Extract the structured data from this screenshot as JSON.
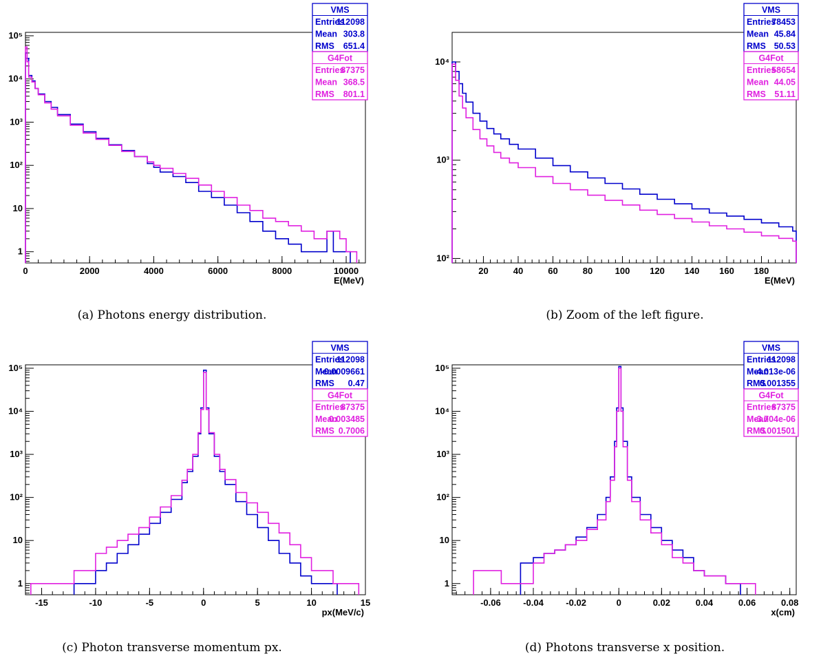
{
  "chart_data": [
    {
      "type": "line",
      "caption": "(a) Photons energy distribution.",
      "xlabel": "E(MeV)",
      "xlim": [
        0,
        10600
      ],
      "ylim": [
        0.55,
        120000
      ],
      "yscale": "log",
      "xticks": [
        0,
        2000,
        4000,
        6000,
        8000,
        10000
      ],
      "yticks": [
        1,
        10,
        100,
        1000,
        10000,
        100000
      ],
      "yticklabels": [
        "1",
        "10",
        "10²",
        "10³",
        "10⁴",
        "10⁵"
      ],
      "stats": [
        {
          "name": "VMS",
          "color": "#0000cc",
          "rows": [
            [
              "Entries",
              "112098"
            ],
            [
              "Mean",
              "303.8"
            ],
            [
              "RMS",
              "651.4"
            ]
          ]
        },
        {
          "name": "G4Fot",
          "color": "#e020e0",
          "rows": [
            [
              "Entries",
              "87375"
            ],
            [
              "Mean",
              "368.5"
            ],
            [
              "RMS",
              "801.1"
            ]
          ]
        }
      ],
      "series": [
        {
          "name": "VMS",
          "color": "#0000cc",
          "x": [
            0,
            50,
            100,
            200,
            300,
            400,
            600,
            800,
            1000,
            1400,
            1800,
            2200,
            2600,
            3000,
            3400,
            3800,
            4000,
            4200,
            4600,
            5000,
            5400,
            5800,
            6200,
            6600,
            7000,
            7400,
            7800,
            8200,
            8600,
            9000,
            9400,
            9600,
            9800,
            10000
          ],
          "y": [
            40000,
            30000,
            12000,
            9000,
            6000,
            4500,
            3000,
            2200,
            1500,
            900,
            600,
            420,
            300,
            220,
            160,
            110,
            90,
            70,
            55,
            40,
            25,
            18,
            12,
            8,
            5,
            3,
            2,
            1.5,
            1,
            1,
            3,
            1,
            1,
            1
          ]
        },
        {
          "name": "G4Fot",
          "color": "#e020e0",
          "x": [
            0,
            50,
            100,
            200,
            300,
            400,
            600,
            800,
            1000,
            1400,
            1800,
            2200,
            2600,
            3000,
            3400,
            3800,
            4000,
            4200,
            4600,
            5000,
            5400,
            5800,
            6200,
            6600,
            7000,
            7400,
            7800,
            8200,
            8600,
            9000,
            9400,
            9800,
            10000,
            10200
          ],
          "y": [
            55000,
            25000,
            11000,
            8500,
            6000,
            4300,
            2800,
            2000,
            1400,
            850,
            560,
            400,
            290,
            210,
            160,
            120,
            100,
            85,
            65,
            50,
            35,
            25,
            18,
            12,
            9,
            6,
            5,
            4,
            3,
            2,
            3,
            2,
            1,
            1
          ]
        }
      ]
    },
    {
      "type": "line",
      "caption": "(b) Zoom of the left figure.",
      "xlabel": "E(MeV)",
      "xlim": [
        2,
        200
      ],
      "ylim": [
        90,
        20000
      ],
      "yscale": "log",
      "xticks": [
        20,
        40,
        60,
        80,
        100,
        120,
        140,
        160,
        180
      ],
      "yticks": [
        100,
        1000,
        10000
      ],
      "yticklabels": [
        "10²",
        "10³",
        "10⁴"
      ],
      "stats": [
        {
          "name": "VMS",
          "color": "#0000cc",
          "rows": [
            [
              "Entries",
              "78453"
            ],
            [
              "Mean",
              "45.84"
            ],
            [
              "RMS",
              "50.53"
            ]
          ]
        },
        {
          "name": "G4Fot",
          "color": "#e020e0",
          "rows": [
            [
              "Entries",
              "58654"
            ],
            [
              "Mean",
              "44.05"
            ],
            [
              "RMS",
              "51.11"
            ]
          ]
        }
      ],
      "series": [
        {
          "name": "VMS",
          "color": "#0000cc",
          "x": [
            2,
            4,
            6,
            8,
            10,
            14,
            18,
            22,
            26,
            30,
            35,
            40,
            50,
            60,
            70,
            80,
            90,
            100,
            110,
            120,
            130,
            140,
            150,
            160,
            170,
            180,
            190,
            198
          ],
          "y": [
            10000,
            8000,
            6000,
            4800,
            3900,
            3000,
            2500,
            2100,
            1850,
            1650,
            1450,
            1300,
            1050,
            880,
            760,
            660,
            580,
            510,
            450,
            400,
            360,
            320,
            290,
            270,
            250,
            230,
            210,
            190
          ]
        },
        {
          "name": "G4Fot",
          "color": "#e020e0",
          "x": [
            2,
            4,
            6,
            8,
            10,
            14,
            18,
            22,
            26,
            30,
            35,
            40,
            50,
            60,
            70,
            80,
            90,
            100,
            110,
            120,
            130,
            140,
            150,
            160,
            170,
            180,
            190,
            198
          ],
          "y": [
            9500,
            6500,
            4500,
            3400,
            2700,
            2050,
            1650,
            1400,
            1200,
            1050,
            940,
            840,
            680,
            580,
            500,
            440,
            390,
            350,
            310,
            280,
            255,
            235,
            215,
            200,
            185,
            170,
            160,
            150
          ]
        }
      ]
    },
    {
      "type": "line",
      "caption": "(c) Photon transverse momentum px.",
      "xlabel": "px(MeV/c)",
      "xlim": [
        -16.5,
        15
      ],
      "ylim": [
        0.55,
        120000
      ],
      "yscale": "log",
      "xticks": [
        -15,
        -10,
        -5,
        0,
        5,
        10,
        15
      ],
      "yticks": [
        1,
        10,
        100,
        1000,
        10000,
        100000
      ],
      "yticklabels": [
        "1",
        "10",
        "10²",
        "10³",
        "10⁴",
        "10⁵"
      ],
      "stats": [
        {
          "name": "VMS",
          "color": "#0000cc",
          "rows": [
            [
              "Entries",
              "112098"
            ],
            [
              "Mean",
              "-0.0009661"
            ],
            [
              "RMS",
              "0.47"
            ]
          ]
        },
        {
          "name": "G4Fot",
          "color": "#e020e0",
          "rows": [
            [
              "Entries",
              "87375"
            ],
            [
              "Mean",
              "0.003485"
            ],
            [
              "RMS",
              "0.7006"
            ]
          ]
        }
      ],
      "series": [
        {
          "name": "VMS",
          "color": "#0000cc",
          "x": [
            -12,
            -10,
            -9,
            -8,
            -7,
            -6,
            -5,
            -4,
            -3,
            -2,
            -1.5,
            -1,
            -0.5,
            -0.25,
            0,
            0.25,
            0.5,
            1,
            1.5,
            2,
            3,
            4,
            5,
            6,
            7,
            8,
            9,
            10,
            12
          ],
          "y": [
            1,
            2,
            3,
            5,
            8,
            14,
            25,
            45,
            90,
            220,
            400,
            900,
            3000,
            12000,
            90000,
            12000,
            3000,
            900,
            400,
            200,
            80,
            40,
            20,
            10,
            5,
            3,
            1.5,
            1,
            1
          ]
        },
        {
          "name": "G4Fot",
          "color": "#e020e0",
          "x": [
            -16,
            -14,
            -12,
            -10,
            -9,
            -8,
            -7,
            -6,
            -5,
            -4,
            -3,
            -2,
            -1.5,
            -1,
            -0.5,
            -0.25,
            0,
            0.25,
            0.5,
            1,
            1.5,
            2,
            3,
            4,
            5,
            6,
            7,
            8,
            9,
            10,
            11,
            12,
            14
          ],
          "y": [
            1,
            1,
            2,
            5,
            7,
            10,
            14,
            20,
            35,
            60,
            110,
            250,
            450,
            1000,
            3200,
            11000,
            80000,
            11000,
            3200,
            1000,
            450,
            260,
            130,
            75,
            45,
            25,
            15,
            8,
            4,
            2,
            2,
            1,
            1
          ]
        }
      ]
    },
    {
      "type": "line",
      "caption": "(d) Photons transverse x position.",
      "xlabel": "x(cm)",
      "xlim": [
        -0.078,
        0.083
      ],
      "ylim": [
        0.55,
        120000
      ],
      "yscale": "log",
      "xticks": [
        -0.06,
        -0.04,
        -0.02,
        0,
        0.02,
        0.04,
        0.06,
        0.08
      ],
      "xticklabels": [
        "-0.06",
        "-0.04",
        "-0.02",
        "0",
        "0.02",
        "0.04",
        "0.06",
        "0.08"
      ],
      "yticks": [
        1,
        10,
        100,
        1000,
        10000,
        100000
      ],
      "yticklabels": [
        "1",
        "10",
        "10²",
        "10³",
        "10⁴",
        "10⁵"
      ],
      "stats": [
        {
          "name": "VMS",
          "color": "#0000cc",
          "rows": [
            [
              "Entries",
              "112098"
            ],
            [
              "Mean",
              "-4.013e-06"
            ],
            [
              "RMS",
              "0.001355"
            ]
          ]
        },
        {
          "name": "G4Fot",
          "color": "#e020e0",
          "rows": [
            [
              "Entries",
              "87375"
            ],
            [
              "Mean",
              "-3.704e-06"
            ],
            [
              "RMS",
              "0.001501"
            ]
          ]
        }
      ],
      "series": [
        {
          "name": "VMS",
          "color": "#0000cc",
          "x": [
            -0.046,
            -0.04,
            -0.035,
            -0.03,
            -0.025,
            -0.02,
            -0.015,
            -0.01,
            -0.006,
            -0.004,
            -0.002,
            -0.001,
            0,
            0.001,
            0.002,
            0.004,
            0.006,
            0.01,
            0.015,
            0.02,
            0.025,
            0.03,
            0.035,
            0.04,
            0.05,
            0.055
          ],
          "y": [
            3,
            4,
            5,
            6,
            8,
            12,
            20,
            40,
            100,
            300,
            2000,
            12000,
            110000,
            12000,
            2000,
            300,
            100,
            40,
            20,
            10,
            6,
            4,
            2,
            1.5,
            1,
            1
          ]
        },
        {
          "name": "G4Fot",
          "color": "#e020e0",
          "x": [
            -0.068,
            -0.055,
            -0.045,
            -0.04,
            -0.035,
            -0.03,
            -0.025,
            -0.02,
            -0.015,
            -0.01,
            -0.006,
            -0.004,
            -0.002,
            -0.001,
            0,
            0.001,
            0.002,
            0.004,
            0.006,
            0.01,
            0.015,
            0.02,
            0.025,
            0.03,
            0.035,
            0.04,
            0.05,
            0.062
          ],
          "y": [
            2,
            1,
            1,
            3,
            5,
            6,
            8,
            10,
            18,
            30,
            80,
            250,
            1500,
            10000,
            100000,
            10000,
            1500,
            250,
            80,
            30,
            15,
            8,
            4,
            3,
            2,
            1.5,
            1,
            1
          ]
        }
      ]
    }
  ]
}
